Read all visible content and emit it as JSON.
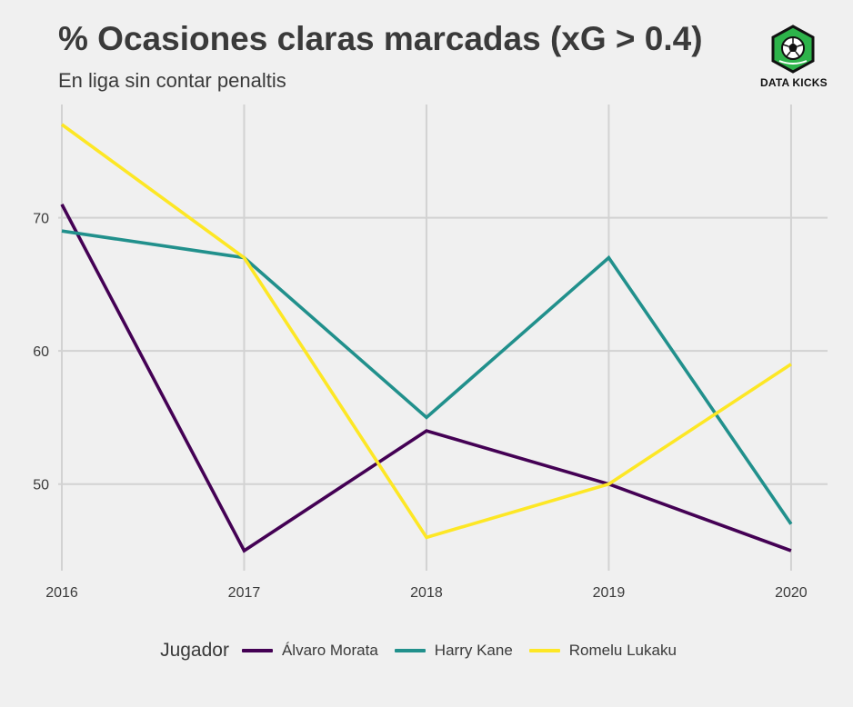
{
  "header": {
    "title": "% Ocasiones claras marcadas (xG > 0.4)",
    "subtitle": "En liga sin contar penaltis"
  },
  "logo": {
    "label": "DATA KICKS",
    "icon": "soccer-ball-hexagon-icon",
    "color": "#2db34a"
  },
  "legend": {
    "title": "Jugador"
  },
  "chart_data": {
    "type": "line",
    "title": "% Ocasiones claras marcadas (xG > 0.4)",
    "subtitle": "En liga sin contar penaltis",
    "xlabel": "",
    "ylabel": "",
    "x": [
      2016,
      2017,
      2018,
      2019,
      2020
    ],
    "x_tick_labels": [
      "2016",
      "2017",
      "2018",
      "2019",
      "2020"
    ],
    "y_ticks": [
      50,
      60,
      70
    ],
    "xlim": [
      2015.98,
      2020.2
    ],
    "ylim": [
      43.5,
      78.5
    ],
    "grid": true,
    "legend_position": "bottom",
    "series": [
      {
        "name": "Álvaro Morata",
        "color": "#440154",
        "values": [
          71,
          45,
          54,
          50,
          45
        ]
      },
      {
        "name": "Harry Kane",
        "color": "#21908c",
        "values": [
          69,
          67,
          55,
          67,
          47
        ]
      },
      {
        "name": "Romelu Lukaku",
        "color": "#fde725",
        "values": [
          77,
          67,
          46,
          50,
          59
        ]
      }
    ]
  }
}
